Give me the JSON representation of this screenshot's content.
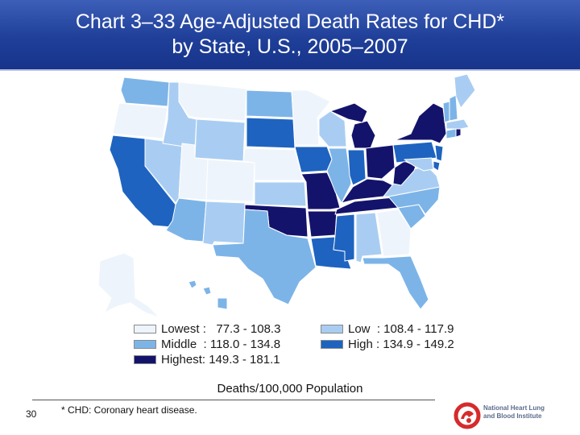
{
  "title": {
    "line1": "Chart 3–33 Age-Adjusted Death Rates for CHD*",
    "line2": "by State, U.S., 2005–2007"
  },
  "colors": {
    "lowest": "#eef4fb",
    "low": "#a9cdf2",
    "middle": "#7cb4e8",
    "high": "#1e63c0",
    "highest": "#14136b",
    "border": "#ffffff"
  },
  "map": {
    "states": {
      "WA": "middle",
      "OR": "lowest",
      "CA": "high",
      "NV": "low",
      "ID": "low",
      "MT": "lowest",
      "WY": "low",
      "UT": "lowest",
      "AZ": "middle",
      "CO": "lowest",
      "NM": "low",
      "ND": "middle",
      "SD": "high",
      "NE": "lowest",
      "KS": "low",
      "OK": "highest",
      "TX": "middle",
      "MN": "lowest",
      "IA": "high",
      "MO": "highest",
      "AR": "highest",
      "LA": "high",
      "WI": "low",
      "IL": "middle",
      "MI": "highest",
      "IN": "high",
      "OH": "highest",
      "KY": "highest",
      "TN": "highest",
      "MS": "high",
      "AL": "low",
      "GA": "lowest",
      "FL": "middle",
      "SC": "middle",
      "NC": "middle",
      "VA": "low",
      "WV": "highest",
      "PA": "high",
      "NY": "highest",
      "ME": "low",
      "VT": "middle",
      "NH": "middle",
      "MA": "low",
      "RI": "highest",
      "CT": "middle",
      "NJ": "high",
      "DE": "high",
      "MD": "low",
      "AK": "lowest",
      "HI": "middle"
    }
  },
  "legend": {
    "items": [
      {
        "key": "lowest",
        "label": "Lowest :   77.3 - 108.3"
      },
      {
        "key": "low",
        "label": "Low  : 108.4 - 117.9"
      },
      {
        "key": "middle",
        "label": "Middle  : 118.0 - 134.8"
      },
      {
        "key": "high",
        "label": "High : 134.9 - 149.2"
      },
      {
        "key": "highest",
        "label": "Highest: 149.3 - 181.1"
      }
    ]
  },
  "caption": "Deaths/100,000 Population",
  "footer": {
    "slide_number": "30",
    "footnote": "* CHD: Coronary heart disease.",
    "logo_text": "National Heart Lung and Blood Institute"
  }
}
